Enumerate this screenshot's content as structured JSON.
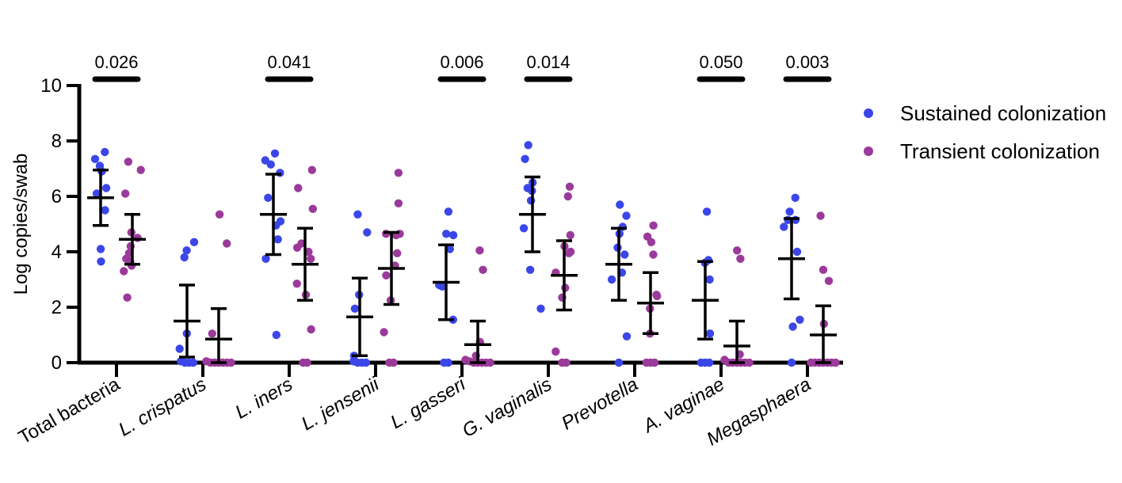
{
  "chart_data": {
    "type": "scatter",
    "ylabel": "Log copies/swab",
    "ylim": [
      0,
      10
    ],
    "yticks": [
      "0",
      "2",
      "4",
      "6",
      "8",
      "10"
    ],
    "categories": [
      "Total bacteria",
      "L. crispatus",
      "L. iners",
      "L. jensenii",
      "L. gasseri",
      "G. vaginalis",
      "Prevotella",
      "A. vaginae",
      "Megasphaera"
    ],
    "italic_categories": [
      false,
      true,
      true,
      true,
      true,
      true,
      true,
      true,
      true
    ],
    "legend": [
      {
        "name": "Sustained colonization",
        "color": "#3b46e8"
      },
      {
        "name": "Transient colonization",
        "color": "#9b3a9b"
      }
    ],
    "p_values": [
      {
        "category": "Total bacteria",
        "label": "0.026"
      },
      {
        "category": "L. iners",
        "label": "0.041"
      },
      {
        "category": "L. gasseri",
        "label": "0.006"
      },
      {
        "category": "G. vaginalis",
        "label": "0.014"
      },
      {
        "category": "A. vaginae",
        "label": "0.050"
      },
      {
        "category": "Megasphaera",
        "label": "0.003"
      }
    ],
    "series": [
      {
        "name": "Sustained colonization",
        "color": "#3b46e8",
        "mean": [
          5.95,
          1.5,
          5.35,
          1.65,
          2.9,
          5.35,
          3.55,
          2.25,
          3.75
        ],
        "sd": [
          1.0,
          1.3,
          1.45,
          1.4,
          1.35,
          1.35,
          1.3,
          1.4,
          1.45
        ],
        "points": [
          [
            7.35,
            7.6,
            6.9,
            7.1,
            6.1,
            6.3,
            5.5,
            4.1,
            3.65
          ],
          [
            4.35,
            4.05,
            3.8,
            1.05,
            0.5,
            0.05,
            0.0,
            0.0,
            0.0
          ],
          [
            7.55,
            7.3,
            7.15,
            6.85,
            5.95,
            5.1,
            4.95,
            4.45,
            3.75,
            1.0
          ],
          [
            5.35,
            4.7,
            2.45,
            1.95,
            0.25,
            0.05,
            0.0,
            0.0,
            0.0
          ],
          [
            5.45,
            4.65,
            4.6,
            4.1,
            2.8,
            2.75,
            1.55,
            0.0,
            0.0
          ],
          [
            7.85,
            7.35,
            6.5,
            6.3,
            6.2,
            5.85,
            4.85,
            3.35,
            1.95
          ],
          [
            5.7,
            5.3,
            4.9,
            4.65,
            4.15,
            3.9,
            3.25,
            3.0,
            0.95,
            0.0
          ],
          [
            5.45,
            3.7,
            3.6,
            3.0,
            1.05,
            0.0,
            0.0,
            0.0
          ],
          [
            5.95,
            5.45,
            5.15,
            5.15,
            4.9,
            4.0,
            1.55,
            1.3,
            0.0
          ]
        ]
      },
      {
        "name": "Transient colonization",
        "color": "#9b3a9b",
        "mean": [
          4.45,
          0.85,
          3.55,
          3.4,
          0.65,
          3.15,
          2.15,
          0.6,
          1.0
        ],
        "sd": [
          0.9,
          1.1,
          1.3,
          1.3,
          0.85,
          1.25,
          1.1,
          0.9,
          1.05
        ],
        "points": [
          [
            7.25,
            6.95,
            6.1,
            4.7,
            4.5,
            4.2,
            3.95,
            3.75,
            3.65,
            3.5,
            3.3,
            2.35
          ],
          [
            5.35,
            4.3,
            1.05,
            0.05,
            0.0,
            0.0,
            0.0,
            0.0,
            0.0,
            0.0
          ],
          [
            6.95,
            6.3,
            5.55,
            4.3,
            4.15,
            4.0,
            3.75,
            2.85,
            2.45,
            1.2,
            0.0,
            0.0
          ],
          [
            6.85,
            5.75,
            4.65,
            4.6,
            4.65,
            3.95,
            3.5,
            3.15,
            2.25,
            1.1,
            0.0,
            0.0
          ],
          [
            4.05,
            3.35,
            0.75,
            0.25,
            0.1,
            0.05,
            0.0,
            0.0,
            0.0,
            0.0,
            0.0
          ],
          [
            6.35,
            6.0,
            4.6,
            4.2,
            4.0,
            3.95,
            3.25,
            2.7,
            2.35,
            0.4,
            0.0,
            0.0
          ],
          [
            4.95,
            4.55,
            4.35,
            3.9,
            2.45,
            2.4,
            1.95,
            1.05,
            0.0,
            0.0,
            0.0
          ],
          [
            4.05,
            3.75,
            0.3,
            0.1,
            0.0,
            0.0,
            0.0,
            0.0,
            0.0,
            0.0
          ],
          [
            5.3,
            3.35,
            2.95,
            1.4,
            0.0,
            0.0,
            0.0,
            0.0,
            0.0,
            0.0,
            0.0
          ]
        ]
      }
    ]
  }
}
